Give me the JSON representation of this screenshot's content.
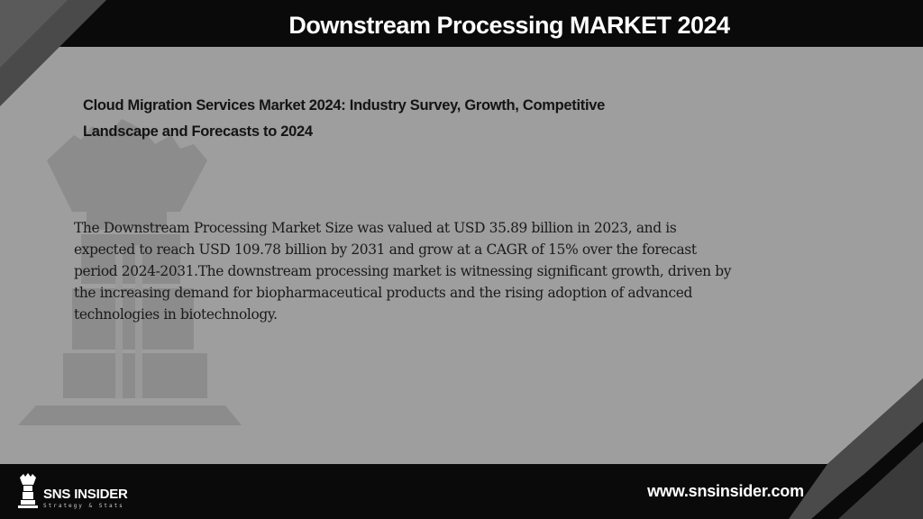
{
  "header": {
    "title": "Downstream Processing MARKET 2024"
  },
  "content": {
    "subtitle_line1": "Cloud Migration Services Market 2024: Industry Survey, Growth, Competitive",
    "subtitle_line2": "Landscape and Forecasts to 2024",
    "body": "The Downstream Processing Market Size was valued at USD 35.89 billion in 2023, and is expected to reach USD 109.78 billion by 2031 and grow at a CAGR of 15% over the forecast period 2024-2031.The downstream processing market is witnessing significant growth, driven by the increasing demand for biopharmaceutical products and the rising adoption of advanced technologies in biotechnology."
  },
  "footer": {
    "brand_name": "SNS INSIDER",
    "brand_tagline": "Strategy & Stats",
    "website": "www.snsinsider.com"
  },
  "colors": {
    "background": "#9e9e9e",
    "bar": "#0a0a0a",
    "accent_dark": "#4a4a4a",
    "text": "#1a1a1a"
  },
  "icons": [
    "rook-watermark-icon",
    "sns-rook-logo-icon"
  ]
}
